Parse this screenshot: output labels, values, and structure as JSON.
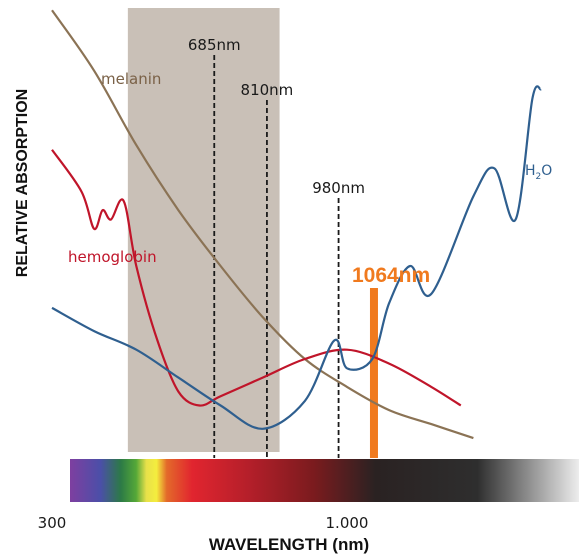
{
  "chart_data": {
    "type": "line",
    "title": "",
    "xlabel": "WAVELENGTH (nm)",
    "ylabel": "RELATIVE ABSORPTION",
    "x_ticks": [
      "300",
      "1.000"
    ],
    "x_unit": "nm",
    "xlim": [
      300,
      1460
    ],
    "highlight_band": [
      480,
      840
    ],
    "markers": [
      {
        "label": "685nm",
        "x": 685
      },
      {
        "label": "810nm",
        "x": 810
      },
      {
        "label": "980nm",
        "x": 980
      }
    ],
    "laser_line": {
      "label": "1064nm",
      "x": 1064,
      "color": "#F07A1E"
    },
    "series": [
      {
        "name": "melanin",
        "color": "#8B7355",
        "x": [
          300,
          400,
          500,
          600,
          700,
          800,
          900,
          1000,
          1100,
          1200,
          1300
        ],
        "y": [
          0.95,
          0.82,
          0.66,
          0.52,
          0.4,
          0.29,
          0.2,
          0.14,
          0.09,
          0.06,
          0.03
        ]
      },
      {
        "name": "hemoglobin",
        "color": "#C0152A",
        "x": [
          300,
          370,
          400,
          420,
          440,
          470,
          500,
          550,
          600,
          650,
          700,
          800,
          900,
          1000,
          1100,
          1200,
          1270
        ],
        "y": [
          0.65,
          0.56,
          0.48,
          0.52,
          0.5,
          0.54,
          0.4,
          0.24,
          0.13,
          0.1,
          0.12,
          0.16,
          0.2,
          0.22,
          0.19,
          0.14,
          0.1
        ]
      },
      {
        "name": "H2O",
        "color": "#2F5F8F",
        "x": [
          300,
          400,
          500,
          600,
          700,
          800,
          900,
          970,
          1000,
          1060,
          1100,
          1150,
          1200,
          1300,
          1350,
          1400,
          1440,
          1460
        ],
        "y": [
          0.31,
          0.26,
          0.22,
          0.16,
          0.1,
          0.05,
          0.11,
          0.24,
          0.18,
          0.2,
          0.32,
          0.4,
          0.34,
          0.55,
          0.61,
          0.5,
          0.76,
          0.78
        ]
      }
    ],
    "labels": {
      "melanin": "melanin",
      "hemoglobin": "hemoglobin",
      "water_main": "H",
      "water_sub": "2",
      "water_tail": "O"
    },
    "spectrum_bar": true,
    "grid": false
  }
}
